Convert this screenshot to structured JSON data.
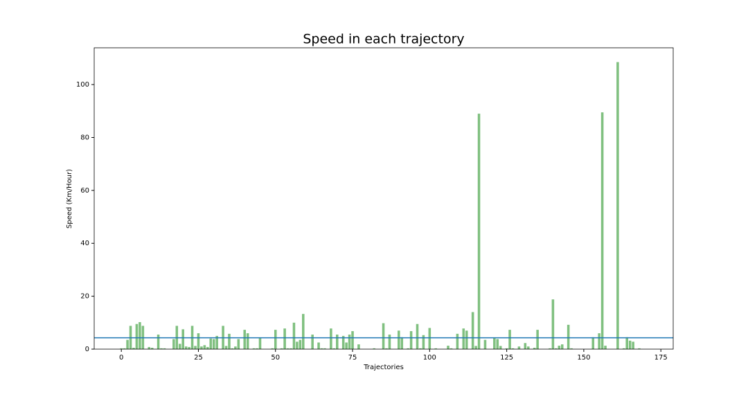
{
  "chart_data": {
    "type": "bar",
    "title": "Speed in each trajectory",
    "xlabel": "Trajectories",
    "ylabel": "Speed (Km/Hour)",
    "x": [
      0,
      1,
      2,
      3,
      4,
      5,
      6,
      7,
      8,
      9,
      10,
      11,
      12,
      13,
      14,
      15,
      16,
      17,
      18,
      19,
      20,
      21,
      22,
      23,
      24,
      25,
      26,
      27,
      28,
      29,
      30,
      31,
      32,
      33,
      34,
      35,
      36,
      37,
      38,
      39,
      40,
      41,
      42,
      43,
      44,
      45,
      46,
      47,
      48,
      49,
      50,
      51,
      52,
      53,
      54,
      55,
      56,
      57,
      58,
      59,
      60,
      61,
      62,
      63,
      64,
      65,
      66,
      67,
      68,
      69,
      70,
      71,
      72,
      73,
      74,
      75,
      76,
      77,
      78,
      79,
      80,
      81,
      82,
      83,
      84,
      85,
      86,
      87,
      88,
      89,
      90,
      91,
      92,
      93,
      94,
      95,
      96,
      97,
      98,
      99,
      100,
      101,
      102,
      103,
      104,
      105,
      106,
      107,
      108,
      109,
      110,
      111,
      112,
      113,
      114,
      115,
      116,
      117,
      118,
      119,
      120,
      121,
      122,
      123,
      124,
      125,
      126,
      127,
      128,
      129,
      130,
      131,
      132,
      133,
      134,
      135,
      136,
      137,
      138,
      139,
      140,
      141,
      142,
      143,
      144,
      145,
      146,
      147,
      148,
      149,
      150,
      151,
      152,
      153,
      154,
      155,
      156,
      157,
      158,
      159,
      160,
      161,
      162,
      163,
      164,
      165,
      166,
      167,
      168,
      169
    ],
    "values": [
      0.3,
      0.3,
      3.5,
      8.8,
      0.5,
      9.5,
      10.2,
      8.8,
      0,
      0.8,
      0.5,
      0,
      5.5,
      0.3,
      0.3,
      0,
      0,
      3.8,
      8.8,
      2,
      7.5,
      1,
      0.8,
      8.8,
      1.2,
      6,
      1,
      1.5,
      0.8,
      4,
      3.8,
      5,
      0,
      8.8,
      1.2,
      5.8,
      0.3,
      1,
      3.8,
      0,
      7.3,
      6,
      0,
      0.3,
      0.3,
      4.2,
      0,
      0,
      0,
      0.3,
      7.3,
      0,
      0.3,
      7.8,
      0.3,
      0.3,
      10,
      2.8,
      3.5,
      13.3,
      0,
      0,
      5.5,
      0,
      2.5,
      0.3,
      0.3,
      0,
      7.8,
      0.3,
      5.5,
      0,
      5,
      2.5,
      5.5,
      6.8,
      0,
      1.8,
      0,
      0,
      0,
      0,
      0.3,
      0,
      0,
      9.8,
      0.3,
      5.5,
      0,
      0,
      7,
      4.5,
      0,
      0.3,
      6.8,
      0,
      9.5,
      0.3,
      5.3,
      0,
      8,
      0,
      0.3,
      0,
      0,
      0,
      1.3,
      0.3,
      0,
      5.8,
      0,
      7.8,
      7,
      0,
      14,
      1.2,
      89,
      0,
      3.5,
      0,
      0,
      4.2,
      3.8,
      1.2,
      0,
      0.3,
      7.3,
      0.3,
      0,
      1,
      0,
      2.3,
      1,
      0,
      0.5,
      7.3,
      0,
      0,
      0,
      0.3,
      18.8,
      0.3,
      1.3,
      1.8,
      0,
      9.2,
      0.3,
      0,
      0,
      0,
      0,
      0,
      0,
      4.5,
      0,
      6,
      89.5,
      1.3,
      0,
      0,
      0,
      108.5,
      0,
      0.3,
      4.5,
      3.2,
      2.8,
      0,
      0.3,
      0
    ],
    "color": "#80c080",
    "bar_width": 0.8,
    "hline": {
      "value": 4.3,
      "color": "#1f77b4"
    },
    "xlim": [
      -8.8,
      179
    ],
    "xticks": [
      0,
      25,
      50,
      75,
      100,
      125,
      150,
      175
    ],
    "ylim": [
      0,
      113.9
    ],
    "yticks": [
      0,
      20,
      40,
      60,
      80,
      100
    ],
    "grid": false
  }
}
